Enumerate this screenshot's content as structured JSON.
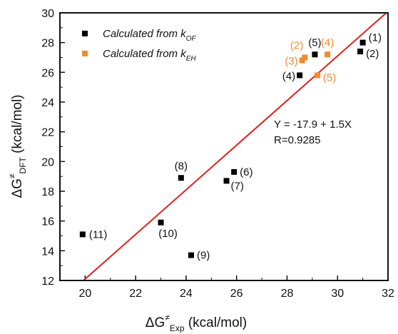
{
  "chart_data": {
    "type": "scatter",
    "xlabel": {
      "main": "ΔG",
      "sup": "≠",
      "sub": "Exp",
      "units": " (kcal/mol)"
    },
    "ylabel": {
      "main": "ΔG",
      "sup": "≠",
      "sub": "DFT",
      "units": " (kcal/mol)"
    },
    "xlim": [
      19,
      32
    ],
    "ylim": [
      12,
      30
    ],
    "xticks": [
      20,
      22,
      24,
      26,
      28,
      30,
      32
    ],
    "yticks": [
      12,
      14,
      16,
      18,
      20,
      22,
      24,
      26,
      28,
      30
    ],
    "legend_position": "top-left",
    "series": [
      {
        "name_main": "Calculated from k",
        "name_sub": "OF",
        "color": "#000000",
        "points": [
          {
            "label": "(1)",
            "x": 31.0,
            "y": 28.0
          },
          {
            "label": "(2)",
            "x": 30.9,
            "y": 27.4
          },
          {
            "label": "(4)",
            "x": 28.5,
            "y": 25.8
          },
          {
            "label": "(5)",
            "x": 29.1,
            "y": 27.2
          },
          {
            "label": "(6)",
            "x": 25.9,
            "y": 19.3
          },
          {
            "label": "(7)",
            "x": 25.6,
            "y": 18.7
          },
          {
            "label": "(8)",
            "x": 23.8,
            "y": 18.9
          },
          {
            "label": "(9)",
            "x": 24.2,
            "y": 13.7
          },
          {
            "label": "(10)",
            "x": 23.0,
            "y": 15.9
          },
          {
            "label": "(11)",
            "x": 19.9,
            "y": 15.1
          }
        ]
      },
      {
        "name_main": "Calculated from k",
        "name_sub": "EH",
        "color": "#f08a30",
        "points": [
          {
            "label": "(2)",
            "x": 28.7,
            "y": 27.0
          },
          {
            "label": "(3)",
            "x": 28.6,
            "y": 26.8
          },
          {
            "label": "(4)",
            "x": 29.6,
            "y": 27.2
          },
          {
            "label": "(5)",
            "x": 29.2,
            "y": 25.8
          }
        ]
      }
    ],
    "fit": {
      "intercept": -17.9,
      "slope": 1.5,
      "color": "#e02020",
      "equation": "Y = -17.9 + 1.5X",
      "r_text": "R=0.9285"
    }
  }
}
